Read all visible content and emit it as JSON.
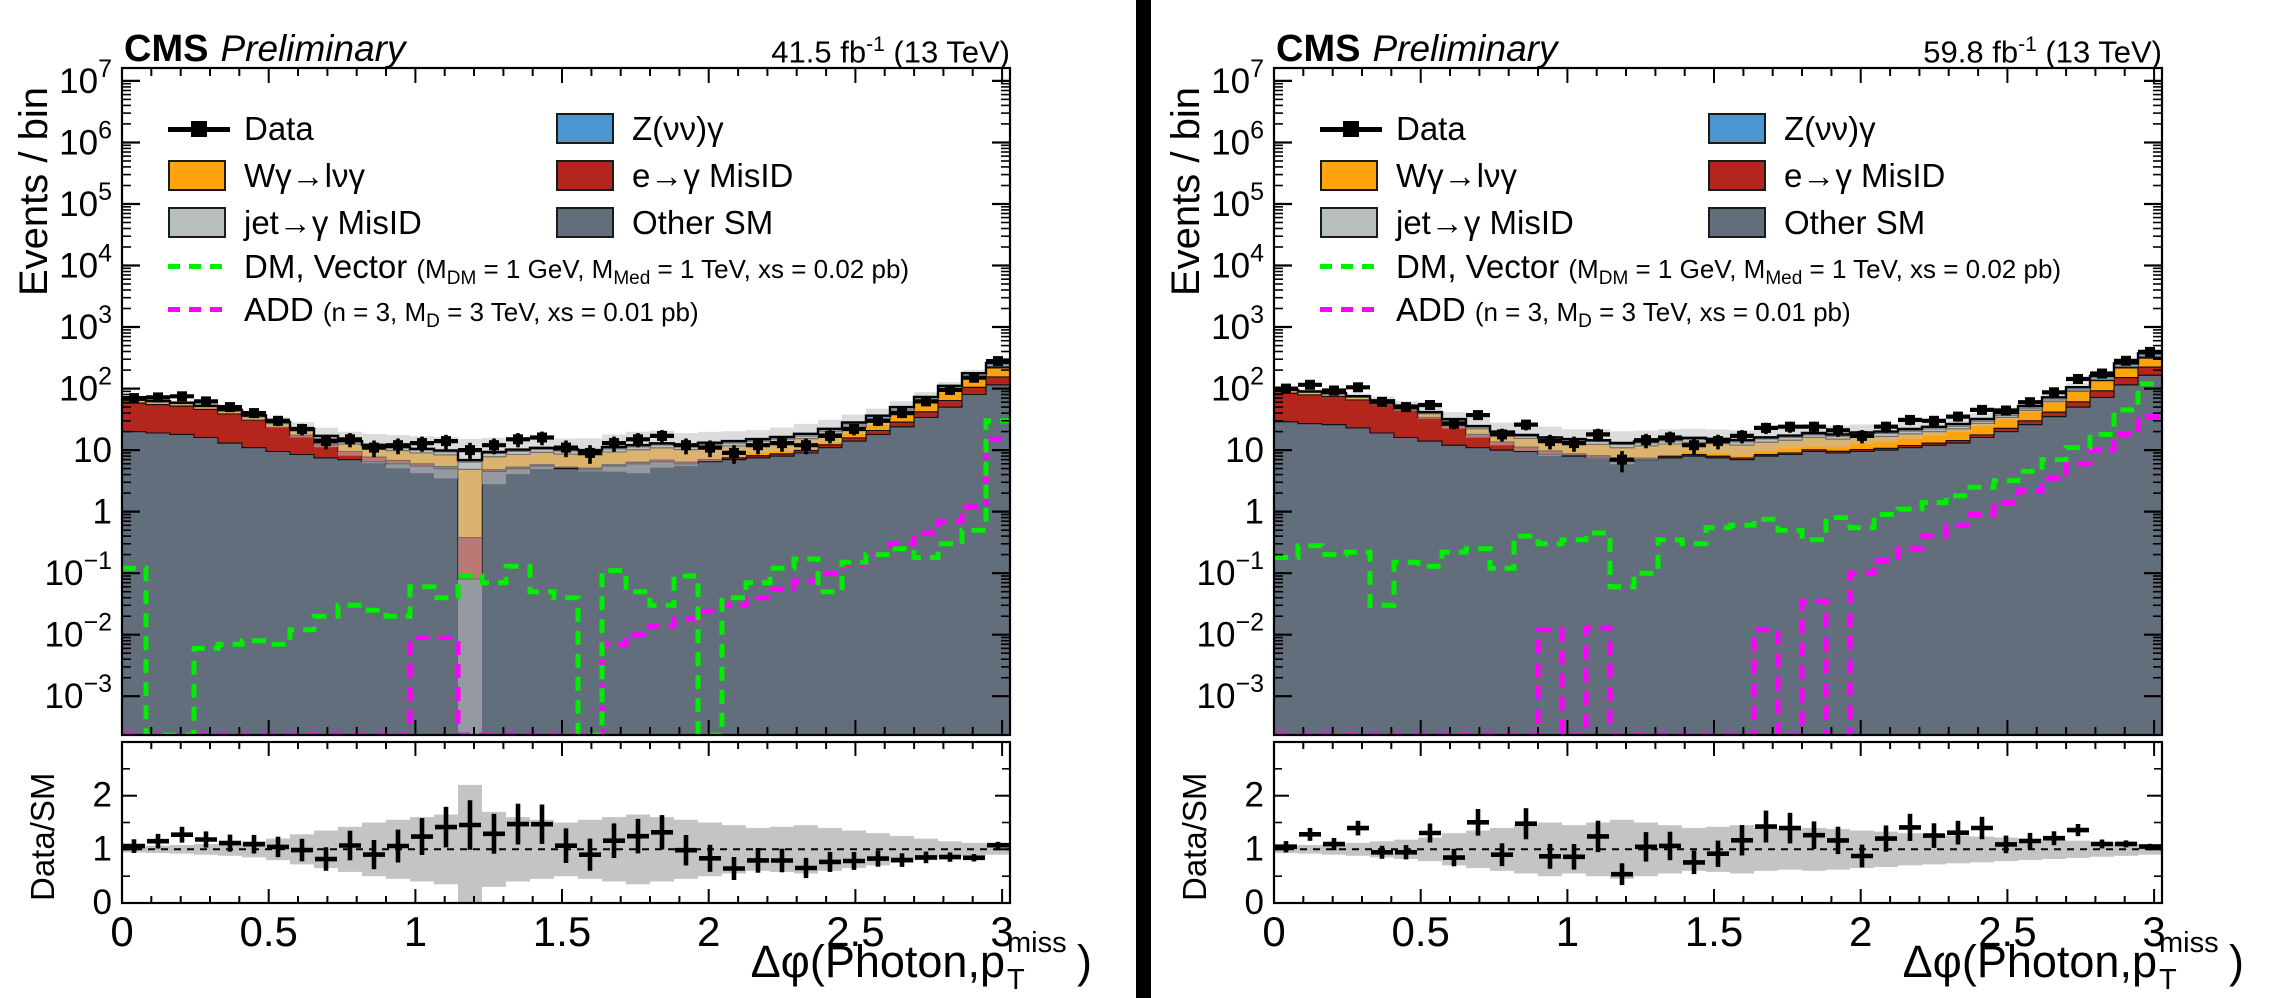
{
  "page": {
    "background": "#ffffff",
    "divider_color": "#000000"
  },
  "chart_data": {
    "type": "stacked-log-histogram-with-ratio",
    "x_axis": {
      "title_pre": "Δφ(Photon,p",
      "title_sub": "T",
      "title_sup": "miss",
      "title_post": ")",
      "min": 0,
      "max": 3.027,
      "nbins": 37,
      "tick_labels": [
        "0",
        "0.5",
        "1",
        "1.5",
        "2",
        "2.5",
        "3"
      ],
      "ticks": [
        0,
        0.5,
        1,
        1.5,
        2,
        2.5,
        3
      ],
      "minor_step": 0.1
    },
    "y_axis": {
      "title": "Events / bin",
      "scale": "log",
      "tick_exponents": [
        7,
        6,
        5,
        4,
        3,
        2,
        1,
        0,
        -1,
        -2,
        -3
      ],
      "log_min": -3.63,
      "log_max": 7.21
    },
    "ratio_axis": {
      "title": "Data/SM",
      "min": 0,
      "max": 3,
      "tick_labels": [
        "0",
        "1",
        "2"
      ],
      "ticks": [
        0,
        1,
        2
      ],
      "unity": 1
    },
    "legend": {
      "data_label": "Data",
      "znunu_label": "Z(νν)γ",
      "wgamma_label": "Wγ→lνγ",
      "egamma_label": "e→γ MisID",
      "jet_label": "jet→γ MisID",
      "other_label": "Other SM",
      "dm_name": "DM, Vector ",
      "dm_p1": "(M",
      "dm_s1": "DM",
      "dm_p2": " = 1 GeV, M",
      "dm_s2": "Med",
      "dm_p3": " = 1 TeV, xs = 0.02 pb)",
      "add_name": "ADD ",
      "add_p1": "(n = 3, M",
      "add_s1": "D",
      "add_p2": " = 3 TeV, xs = 0.01 pb)"
    },
    "colors": {
      "z_nunu": "#4a96d2",
      "w_gamma": "#ffa40c",
      "e_misid": "#b4251c",
      "jet_misid": "#b6bfbc",
      "other_sm": "#626e7b",
      "dm_vector": "#00ee00",
      "add": "#ff00ff",
      "band": "#bfbfbf",
      "ratio_band": "#c4c4c4",
      "data": "#000000"
    },
    "plots": [
      {
        "name": "left",
        "header": {
          "experiment": "CMS",
          "status": "Preliminary",
          "lumi_pre": "41.5 fb",
          "lumi_sup": "-1",
          "lumi_post": " (13 TeV)"
        },
        "series": {
          "other_sm": [
            20,
            19,
            18,
            16,
            13,
            11,
            9.5,
            8.5,
            7.5,
            7,
            6.5,
            6,
            5.5,
            5,
            0.08,
            4.5,
            5,
            5.5,
            5,
            4.8,
            5.5,
            6,
            6.5,
            6,
            6.5,
            7,
            7.5,
            8,
            9,
            11,
            14,
            18,
            24,
            34,
            50,
            80,
            115
          ],
          "e_misid": [
            38,
            36,
            34,
            30,
            26,
            20,
            14,
            9,
            5,
            2.5,
            1.2,
            0.8,
            0.5,
            0.4,
            0.3,
            0.3,
            0.3,
            0.3,
            0.3,
            0.3,
            0.3,
            0.35,
            0.4,
            0.4,
            0.5,
            0.5,
            0.6,
            0.7,
            0.9,
            1.2,
            1.8,
            2.8,
            4.5,
            8,
            14,
            25,
            40
          ],
          "w_gamma": [
            6,
            5.5,
            5,
            4.5,
            4,
            3.8,
            3.5,
            3.2,
            3,
            3,
            3,
            3,
            3,
            3,
            4.5,
            3,
            3.2,
            3.4,
            3.3,
            3.2,
            3.5,
            3.8,
            4,
            3.8,
            4,
            4.2,
            4.5,
            5,
            5.5,
            6.5,
            8,
            10,
            14,
            20,
            30,
            45,
            62
          ],
          "jet_misid": [
            1.5,
            1.5,
            1.4,
            1.4,
            1.3,
            1.2,
            1.2,
            1.1,
            1.1,
            1,
            1,
            1,
            1,
            1,
            1.5,
            1,
            1.1,
            1.1,
            1.1,
            1.1,
            1.2,
            1.2,
            1.2,
            1.2,
            1.3,
            1.3,
            1.4,
            1.4,
            1.5,
            1.6,
            1.8,
            2,
            2.5,
            3,
            4,
            6,
            8
          ],
          "z_nunu": [
            0.5,
            0.5,
            0.5,
            0.5,
            0.5,
            0.5,
            0.5,
            0.5,
            0.5,
            0.5,
            0.5,
            0.5,
            0.5,
            0.5,
            0.5,
            0.5,
            0.6,
            0.6,
            0.6,
            0.6,
            0.7,
            0.7,
            0.8,
            0.8,
            0.9,
            1,
            1.1,
            1.3,
            1.5,
            1.9,
            2.5,
            3.5,
            5,
            8,
            13,
            22,
            35
          ]
        },
        "data_points": [
          70,
          72,
          75,
          62,
          50,
          40,
          30,
          22,
          14,
          15,
          11,
          12,
          13,
          14,
          10,
          12,
          15,
          16,
          11,
          9,
          13,
          15,
          17,
          12,
          11,
          9,
          12,
          13,
          12,
          17,
          22,
          30,
          40,
          62,
          95,
          150,
          280
        ],
        "signals": {
          "dm_vector": [
            0.12,
            0.0002,
            0.0002,
            0.006,
            0.007,
            0.008,
            0.007,
            0.012,
            0.02,
            0.03,
            0.025,
            0.02,
            0.06,
            0.04,
            0.09,
            0.07,
            0.13,
            0.05,
            0.04,
            0.0002,
            0.11,
            0.05,
            0.03,
            0.09,
            0.0002,
            0.04,
            0.07,
            0.12,
            0.17,
            0.05,
            0.15,
            0.2,
            0.25,
            0.18,
            0.3,
            0.5,
            30
          ],
          "add": [
            0.0002,
            0.0002,
            0.0002,
            0.0002,
            0.0002,
            0.0002,
            0.0002,
            0.0002,
            0.0002,
            0.0002,
            0.0002,
            0.0002,
            0.009,
            0.009,
            0.0002,
            0.0002,
            0.0002,
            0.0002,
            0.0002,
            0.0002,
            0.007,
            0.01,
            0.014,
            0.018,
            0.024,
            0.03,
            0.04,
            0.055,
            0.075,
            0.1,
            0.14,
            0.2,
            0.3,
            0.45,
            0.7,
            1.2,
            15
          ]
        },
        "band_rel": [
          0.06,
          0.07,
          0.08,
          0.1,
          0.12,
          0.15,
          0.2,
          0.28,
          0.35,
          0.42,
          0.5,
          0.55,
          0.6,
          0.65,
          1.2,
          0.7,
          0.6,
          0.55,
          0.5,
          0.55,
          0.6,
          0.65,
          0.6,
          0.55,
          0.5,
          0.45,
          0.4,
          0.42,
          0.45,
          0.4,
          0.35,
          0.3,
          0.25,
          0.2,
          0.15,
          0.12,
          0.1
        ]
      },
      {
        "name": "right",
        "header": {
          "experiment": "CMS",
          "status": "Preliminary",
          "lumi_pre": "59.8 fb",
          "lumi_sup": "-1",
          "lumi_post": " (13 TeV)"
        },
        "series": {
          "other_sm": [
            29,
            27,
            26,
            23,
            19,
            16,
            14,
            12,
            11,
            10,
            9.5,
            8.5,
            8,
            7.5,
            6.5,
            7,
            7.5,
            8,
            7.5,
            7,
            8,
            8.5,
            9.5,
            9,
            9.5,
            10,
            11,
            12,
            13,
            16,
            20,
            26,
            35,
            50,
            72,
            115,
            165
          ],
          "e_misid": [
            55,
            52,
            49,
            43,
            37,
            29,
            20,
            13,
            7,
            3.6,
            1.7,
            1.2,
            0.7,
            0.6,
            0.45,
            0.45,
            0.45,
            0.45,
            0.45,
            0.45,
            0.45,
            0.5,
            0.6,
            0.6,
            0.7,
            0.7,
            0.9,
            1,
            1.3,
            1.7,
            2.6,
            4,
            6.5,
            11,
            20,
            36,
            58
          ],
          "w_gamma": [
            8.5,
            8,
            7,
            6.5,
            6,
            5.5,
            5,
            4.6,
            4.3,
            4.3,
            4.3,
            4.3,
            4.3,
            4.3,
            4,
            4.3,
            4.6,
            4.9,
            4.8,
            4.6,
            5,
            5.5,
            6,
            5.5,
            6,
            6,
            6.5,
            7,
            8,
            9.5,
            11.5,
            14,
            20,
            29,
            43,
            65,
            90
          ],
          "jet_misid": [
            2.2,
            2.2,
            2,
            2,
            1.9,
            1.7,
            1.7,
            1.6,
            1.6,
            1.4,
            1.4,
            1.4,
            1.4,
            1.4,
            1.4,
            1.4,
            1.6,
            1.6,
            1.6,
            1.6,
            1.7,
            1.7,
            1.7,
            1.7,
            1.9,
            1.9,
            2,
            2,
            2.2,
            2.3,
            2.6,
            2.9,
            3.6,
            4.3,
            6,
            9,
            12
          ],
          "z_nunu": [
            0.7,
            0.7,
            0.7,
            0.7,
            0.7,
            0.7,
            0.7,
            0.7,
            0.7,
            0.7,
            0.7,
            0.7,
            0.7,
            0.7,
            0.7,
            0.7,
            0.9,
            0.9,
            0.9,
            0.9,
            1,
            1,
            1.2,
            1.2,
            1.3,
            1.4,
            1.6,
            1.9,
            2.2,
            2.7,
            3.6,
            5,
            7,
            11,
            19,
            32,
            50
          ]
        },
        "data_points": [
          100,
          115,
          93,
          105,
          61,
          50,
          54,
          27,
          37,
          18,
          26,
          14,
          13,
          18,
          7,
          14.5,
          16,
          12,
          14,
          17,
          23,
          24,
          24,
          21,
          17,
          24,
          31,
          30,
          35,
          45,
          44,
          60,
          87,
          143,
          176,
          283,
          394
        ],
        "signals": {
          "dm_vector": [
            0.18,
            0.28,
            0.2,
            0.22,
            0.03,
            0.15,
            0.13,
            0.22,
            0.25,
            0.12,
            0.4,
            0.3,
            0.35,
            0.45,
            0.06,
            0.1,
            0.35,
            0.3,
            0.55,
            0.6,
            0.75,
            0.5,
            0.35,
            0.8,
            0.55,
            0.9,
            1.1,
            1.4,
            1.8,
            2.5,
            3.2,
            4.5,
            7,
            11,
            18,
            45,
            120
          ],
          "add": [
            0.0002,
            0.0002,
            0.0002,
            0.0002,
            0.0002,
            0.0002,
            0.0002,
            0.0002,
            0.0002,
            0.0002,
            0.0002,
            0.012,
            0.0002,
            0.013,
            0.0002,
            0.0002,
            0.0002,
            0.0002,
            0.0002,
            0.0002,
            0.012,
            0.0002,
            0.035,
            0.0002,
            0.1,
            0.16,
            0.25,
            0.4,
            0.6,
            0.9,
            1.4,
            2.2,
            3.5,
            6,
            10,
            18,
            35
          ]
        },
        "band_rel": [
          0.07,
          0.08,
          0.1,
          0.12,
          0.15,
          0.18,
          0.22,
          0.3,
          0.35,
          0.4,
          0.45,
          0.5,
          0.45,
          0.5,
          0.55,
          0.5,
          0.45,
          0.4,
          0.42,
          0.45,
          0.4,
          0.38,
          0.4,
          0.38,
          0.35,
          0.33,
          0.3,
          0.28,
          0.26,
          0.24,
          0.22,
          0.2,
          0.18,
          0.16,
          0.14,
          0.12,
          0.1
        ]
      }
    ]
  }
}
